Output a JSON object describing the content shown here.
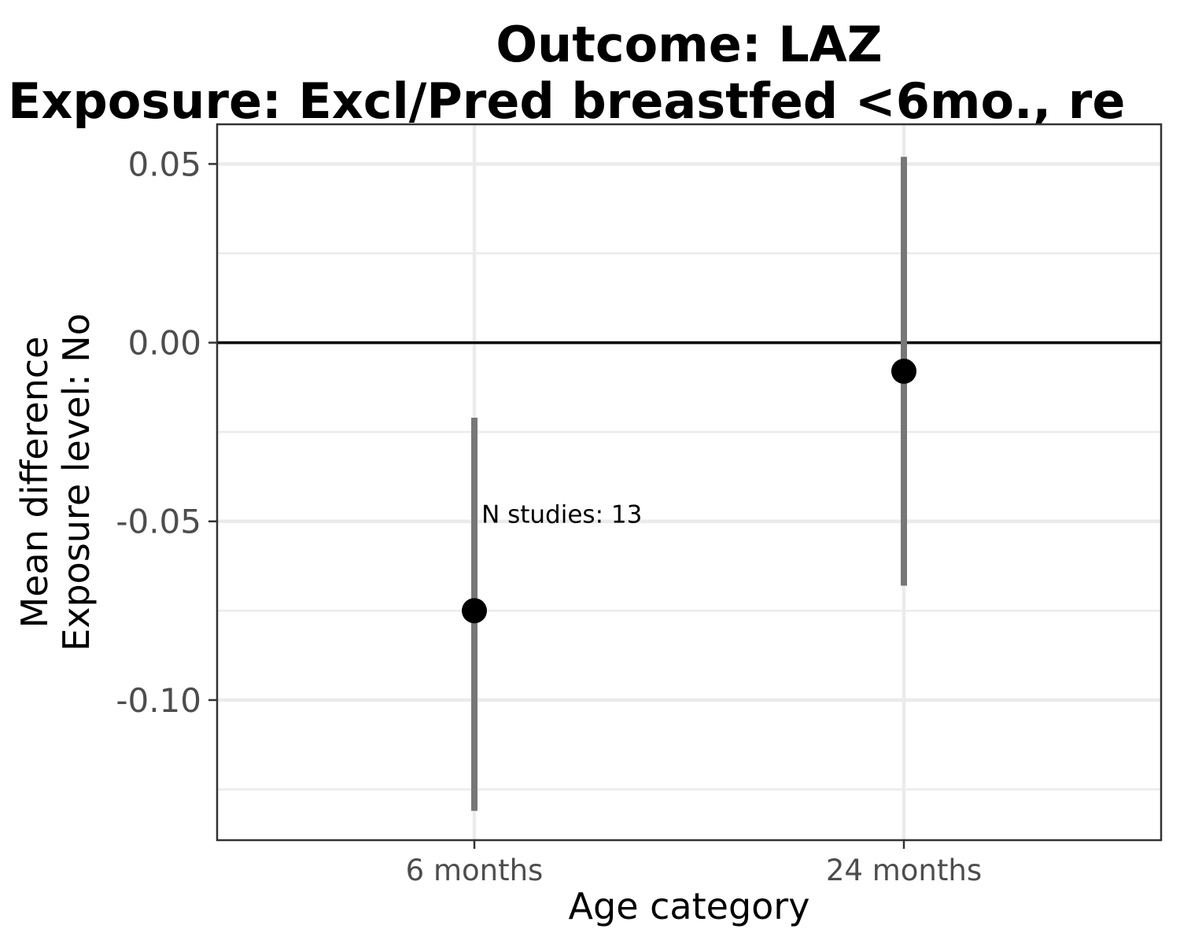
{
  "chart_data": {
    "type": "scatter",
    "title": "Outcome: LAZ",
    "subtitle": "Exposure: Excl/Pred breastfed <6mo., re",
    "xlabel": "Age category",
    "ylabel": [
      "Mean difference",
      "Exposure level: No"
    ],
    "categories": [
      "6 months",
      "24 months"
    ],
    "series": [
      {
        "estimates": [
          -0.075,
          -0.008
        ],
        "ci_lower": [
          -0.131,
          -0.068
        ],
        "ci_upper": [
          -0.021,
          0.052
        ]
      }
    ],
    "yticks": [
      "0.05",
      "0.00",
      "-0.05",
      "-0.10"
    ],
    "ytick_values": [
      0.05,
      0.0,
      -0.05,
      -0.1
    ],
    "ylim": [
      -0.1392,
      0.0611
    ],
    "reference_line": 0,
    "annotation": {
      "text": "N studies: 13",
      "x_position": 1.2,
      "y": -0.048
    },
    "grid": true,
    "legend": "none",
    "colors": {
      "point": "#000000",
      "ci": "#777777",
      "reference": "#000000",
      "grid": "#ebebeb",
      "border": "#333333"
    }
  }
}
